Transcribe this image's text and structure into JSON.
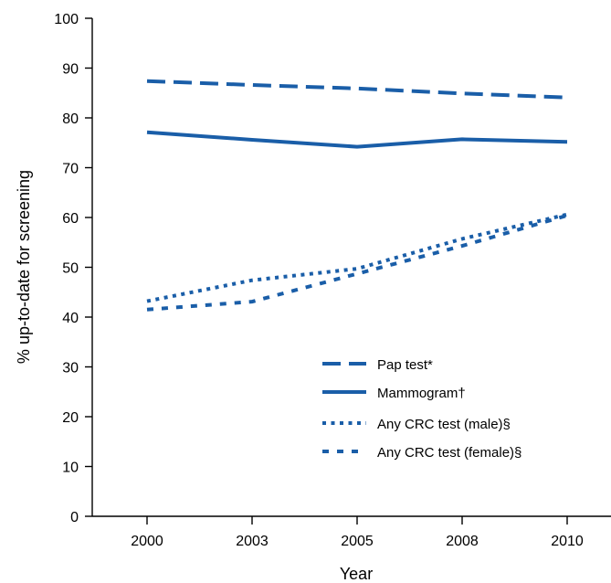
{
  "chart_data": {
    "type": "line",
    "title": "",
    "xlabel": "Year",
    "ylabel": "% up-to-date for screening",
    "x": [
      2000,
      2003,
      2005,
      2008,
      2010
    ],
    "x_tick_labels": [
      "2000",
      "2003",
      "2005",
      "2008",
      "2010"
    ],
    "ylim": [
      0,
      100
    ],
    "y_ticks": [
      0,
      10,
      20,
      30,
      40,
      50,
      60,
      70,
      80,
      90,
      100
    ],
    "grid": false,
    "legend_position": "bottom-right",
    "series": [
      {
        "name": "Pap test*",
        "style": "dashed",
        "color": "#1a5ea8",
        "values": [
          87.4,
          86.6,
          85.9,
          84.9,
          84.1
        ]
      },
      {
        "name": "Mammogram†",
        "style": "solid",
        "color": "#1a5ea8",
        "values": [
          77.1,
          75.6,
          74.2,
          75.7,
          75.2
        ]
      },
      {
        "name": "Any CRC test (male)§",
        "style": "dotted",
        "color": "#1a5ea8",
        "values": [
          43.2,
          47.4,
          49.7,
          55.7,
          60.6
        ]
      },
      {
        "name": "Any CRC test (female)§",
        "style": "square-dot",
        "color": "#1a5ea8",
        "values": [
          41.5,
          43.1,
          48.7,
          54.3,
          60.4
        ]
      }
    ]
  }
}
